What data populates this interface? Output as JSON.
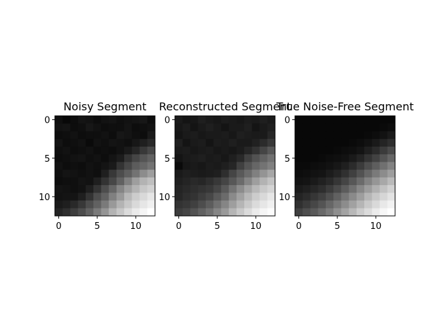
{
  "chart_data": [
    {
      "type": "heatmap",
      "title": "Noisy Segment",
      "colormap": "gray",
      "xticks": [
        0,
        5,
        10
      ],
      "yticks": [
        0,
        5,
        10
      ],
      "grid": false,
      "values": [
        [
          0.06,
          0.03,
          0.05,
          0.08,
          0.07,
          0.05,
          0.07,
          0.08,
          0.06,
          0.07,
          0.08,
          0.09,
          0.05
        ],
        [
          0.07,
          0.08,
          0.05,
          0.06,
          0.09,
          0.07,
          0.05,
          0.06,
          0.06,
          0.08,
          0.05,
          0.06,
          0.07
        ],
        [
          0.05,
          0.06,
          0.07,
          0.05,
          0.06,
          0.06,
          0.07,
          0.05,
          0.09,
          0.08,
          0.06,
          0.05,
          0.1
        ],
        [
          0.08,
          0.05,
          0.06,
          0.07,
          0.04,
          0.07,
          0.06,
          0.08,
          0.07,
          0.06,
          0.09,
          0.12,
          0.16
        ],
        [
          0.06,
          0.07,
          0.05,
          0.06,
          0.07,
          0.05,
          0.06,
          0.05,
          0.07,
          0.1,
          0.15,
          0.22,
          0.28
        ],
        [
          0.05,
          0.06,
          0.07,
          0.08,
          0.06,
          0.07,
          0.05,
          0.08,
          0.11,
          0.2,
          0.27,
          0.33,
          0.38
        ],
        [
          0.07,
          0.05,
          0.06,
          0.05,
          0.07,
          0.06,
          0.08,
          0.1,
          0.2,
          0.28,
          0.36,
          0.4,
          0.45
        ],
        [
          0.06,
          0.08,
          0.07,
          0.06,
          0.07,
          0.06,
          0.12,
          0.22,
          0.3,
          0.37,
          0.45,
          0.55,
          0.62
        ],
        [
          0.05,
          0.06,
          0.06,
          0.08,
          0.07,
          0.12,
          0.2,
          0.28,
          0.38,
          0.5,
          0.62,
          0.7,
          0.75
        ],
        [
          0.08,
          0.07,
          0.06,
          0.07,
          0.12,
          0.2,
          0.3,
          0.4,
          0.52,
          0.62,
          0.7,
          0.78,
          0.82
        ],
        [
          0.07,
          0.08,
          0.08,
          0.12,
          0.2,
          0.3,
          0.38,
          0.5,
          0.6,
          0.72,
          0.8,
          0.85,
          0.9
        ],
        [
          0.1,
          0.12,
          0.16,
          0.22,
          0.3,
          0.38,
          0.48,
          0.6,
          0.7,
          0.78,
          0.85,
          0.9,
          0.94
        ],
        [
          0.14,
          0.18,
          0.24,
          0.3,
          0.38,
          0.48,
          0.58,
          0.7,
          0.78,
          0.86,
          0.92,
          0.96,
          1.0
        ]
      ]
    },
    {
      "type": "heatmap",
      "title": "Reconstructed Segment",
      "colormap": "gray",
      "xticks": [
        0,
        5,
        10
      ],
      "yticks": [
        0,
        5,
        10
      ],
      "grid": false,
      "values": [
        [
          0.1,
          0.08,
          0.09,
          0.12,
          0.1,
          0.09,
          0.11,
          0.1,
          0.09,
          0.11,
          0.1,
          0.12,
          0.1
        ],
        [
          0.09,
          0.11,
          0.08,
          0.1,
          0.12,
          0.1,
          0.08,
          0.1,
          0.1,
          0.12,
          0.08,
          0.1,
          0.12
        ],
        [
          0.08,
          0.1,
          0.11,
          0.09,
          0.1,
          0.1,
          0.11,
          0.09,
          0.12,
          0.11,
          0.1,
          0.1,
          0.15
        ],
        [
          0.12,
          0.08,
          0.1,
          0.11,
          0.08,
          0.11,
          0.1,
          0.12,
          0.1,
          0.1,
          0.13,
          0.17,
          0.22
        ],
        [
          0.1,
          0.11,
          0.09,
          0.1,
          0.11,
          0.09,
          0.1,
          0.09,
          0.11,
          0.15,
          0.2,
          0.27,
          0.34
        ],
        [
          0.08,
          0.1,
          0.11,
          0.12,
          0.1,
          0.11,
          0.09,
          0.12,
          0.16,
          0.25,
          0.32,
          0.38,
          0.44
        ],
        [
          0.04,
          0.09,
          0.1,
          0.09,
          0.11,
          0.1,
          0.12,
          0.15,
          0.25,
          0.33,
          0.4,
          0.45,
          0.5
        ],
        [
          0.1,
          0.12,
          0.11,
          0.1,
          0.11,
          0.12,
          0.18,
          0.27,
          0.35,
          0.42,
          0.5,
          0.58,
          0.65
        ],
        [
          0.12,
          0.14,
          0.16,
          0.15,
          0.18,
          0.22,
          0.27,
          0.34,
          0.42,
          0.52,
          0.62,
          0.7,
          0.76
        ],
        [
          0.14,
          0.16,
          0.18,
          0.2,
          0.22,
          0.27,
          0.35,
          0.45,
          0.55,
          0.64,
          0.72,
          0.79,
          0.83
        ],
        [
          0.15,
          0.18,
          0.2,
          0.24,
          0.28,
          0.35,
          0.42,
          0.54,
          0.63,
          0.72,
          0.8,
          0.85,
          0.9
        ],
        [
          0.2,
          0.22,
          0.25,
          0.3,
          0.36,
          0.44,
          0.52,
          0.62,
          0.71,
          0.79,
          0.86,
          0.9,
          0.94
        ],
        [
          0.24,
          0.27,
          0.32,
          0.38,
          0.44,
          0.52,
          0.6,
          0.71,
          0.79,
          0.86,
          0.92,
          0.96,
          0.99
        ]
      ]
    },
    {
      "type": "heatmap",
      "title": "True Noise-Free Segment",
      "colormap": "gray",
      "xticks": [
        0,
        5,
        10
      ],
      "yticks": [
        0,
        5,
        10
      ],
      "grid": false,
      "values": [
        [
          0.03,
          0.03,
          0.03,
          0.03,
          0.03,
          0.03,
          0.03,
          0.03,
          0.03,
          0.03,
          0.03,
          0.03,
          0.03
        ],
        [
          0.03,
          0.03,
          0.03,
          0.03,
          0.03,
          0.03,
          0.03,
          0.03,
          0.03,
          0.03,
          0.03,
          0.04,
          0.05
        ],
        [
          0.03,
          0.03,
          0.03,
          0.03,
          0.03,
          0.03,
          0.03,
          0.03,
          0.03,
          0.04,
          0.05,
          0.07,
          0.1
        ],
        [
          0.03,
          0.03,
          0.03,
          0.03,
          0.03,
          0.03,
          0.03,
          0.04,
          0.05,
          0.07,
          0.1,
          0.14,
          0.18
        ],
        [
          0.03,
          0.03,
          0.03,
          0.03,
          0.03,
          0.04,
          0.05,
          0.06,
          0.08,
          0.12,
          0.17,
          0.23,
          0.29
        ],
        [
          0.03,
          0.03,
          0.03,
          0.04,
          0.05,
          0.06,
          0.07,
          0.1,
          0.14,
          0.2,
          0.26,
          0.33,
          0.4
        ],
        [
          0.04,
          0.04,
          0.05,
          0.06,
          0.07,
          0.09,
          0.12,
          0.17,
          0.23,
          0.3,
          0.37,
          0.44,
          0.51
        ],
        [
          0.05,
          0.06,
          0.07,
          0.08,
          0.11,
          0.14,
          0.19,
          0.25,
          0.32,
          0.4,
          0.48,
          0.55,
          0.62
        ],
        [
          0.07,
          0.08,
          0.1,
          0.13,
          0.16,
          0.21,
          0.27,
          0.34,
          0.42,
          0.51,
          0.59,
          0.66,
          0.73
        ],
        [
          0.1,
          0.12,
          0.15,
          0.18,
          0.23,
          0.29,
          0.36,
          0.44,
          0.53,
          0.61,
          0.69,
          0.76,
          0.82
        ],
        [
          0.14,
          0.17,
          0.21,
          0.25,
          0.31,
          0.38,
          0.46,
          0.54,
          0.62,
          0.71,
          0.78,
          0.84,
          0.89
        ],
        [
          0.19,
          0.23,
          0.28,
          0.33,
          0.4,
          0.47,
          0.55,
          0.63,
          0.71,
          0.79,
          0.85,
          0.91,
          0.95
        ],
        [
          0.25,
          0.3,
          0.35,
          0.41,
          0.48,
          0.56,
          0.64,
          0.72,
          0.8,
          0.86,
          0.92,
          0.97,
          1.0
        ]
      ]
    }
  ]
}
